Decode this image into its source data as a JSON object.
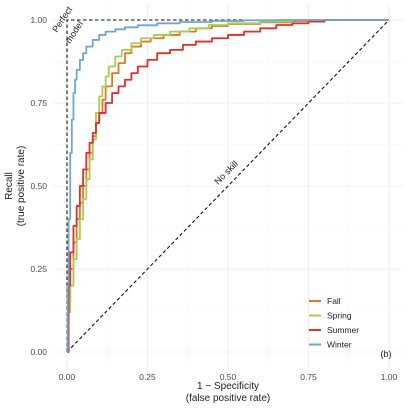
{
  "chart_data": {
    "type": "line",
    "xlabel": [
      "1 − Specificity",
      "(false positive rate)"
    ],
    "ylabel": [
      "Recall",
      "(true positive rate)"
    ],
    "xlim": [
      0,
      1
    ],
    "ylim": [
      0,
      1
    ],
    "xticks": [
      "0.00",
      "0.25",
      "0.50",
      "0.75",
      "1.00"
    ],
    "yticks": [
      "0.00",
      "0.25",
      "0.50",
      "0.75",
      "1.00"
    ],
    "grid": true,
    "legend_position": "bottom-right",
    "panel_label": "(b)",
    "annotations": {
      "perfect_model": [
        "Perfect",
        "model"
      ],
      "no_skill": "No skill"
    },
    "reference_lines": {
      "perfect": {
        "x": [
          0,
          0,
          1
        ],
        "y": [
          0,
          1,
          1
        ]
      },
      "no_skill": {
        "x": [
          0,
          1
        ],
        "y": [
          0,
          1
        ]
      }
    },
    "series": [
      {
        "name": "Fall",
        "color": "#e8761c",
        "x": [
          0,
          0.005,
          0.01,
          0.02,
          0.03,
          0.04,
          0.05,
          0.06,
          0.07,
          0.08,
          0.09,
          0.1,
          0.11,
          0.12,
          0.14,
          0.16,
          0.18,
          0.2,
          0.23,
          0.26,
          0.3,
          0.35,
          0.4,
          0.45,
          0.5,
          0.6,
          0.7,
          0.8,
          0.9,
          1
        ],
        "y": [
          0,
          0.15,
          0.25,
          0.33,
          0.4,
          0.45,
          0.5,
          0.55,
          0.6,
          0.65,
          0.69,
          0.72,
          0.76,
          0.8,
          0.84,
          0.87,
          0.9,
          0.92,
          0.935,
          0.945,
          0.955,
          0.965,
          0.975,
          0.982,
          0.988,
          0.993,
          0.997,
          1,
          1,
          1
        ]
      },
      {
        "name": "Spring",
        "color": "#a8cc56",
        "x": [
          0,
          0.005,
          0.01,
          0.02,
          0.03,
          0.04,
          0.05,
          0.06,
          0.07,
          0.08,
          0.09,
          0.1,
          0.11,
          0.12,
          0.13,
          0.15,
          0.17,
          0.2,
          0.23,
          0.27,
          0.32,
          0.38,
          0.44,
          0.5,
          0.6,
          0.7,
          0.8,
          0.9,
          1
        ],
        "y": [
          0,
          0.12,
          0.2,
          0.28,
          0.34,
          0.4,
          0.46,
          0.52,
          0.58,
          0.64,
          0.72,
          0.77,
          0.8,
          0.83,
          0.86,
          0.89,
          0.91,
          0.93,
          0.945,
          0.955,
          0.965,
          0.975,
          0.985,
          0.99,
          0.995,
          1,
          1,
          1,
          1
        ]
      },
      {
        "name": "Summer",
        "color": "#e0302a",
        "x": [
          0,
          0.005,
          0.01,
          0.02,
          0.03,
          0.04,
          0.05,
          0.06,
          0.07,
          0.08,
          0.09,
          0.1,
          0.12,
          0.14,
          0.16,
          0.18,
          0.2,
          0.22,
          0.25,
          0.28,
          0.32,
          0.36,
          0.4,
          0.45,
          0.5,
          0.55,
          0.6,
          0.65,
          0.7,
          0.75,
          0.8,
          0.9,
          1
        ],
        "y": [
          0,
          0.2,
          0.3,
          0.38,
          0.44,
          0.5,
          0.55,
          0.6,
          0.63,
          0.66,
          0.69,
          0.72,
          0.75,
          0.78,
          0.8,
          0.82,
          0.84,
          0.86,
          0.88,
          0.9,
          0.91,
          0.925,
          0.935,
          0.945,
          0.955,
          0.965,
          0.975,
          0.985,
          0.99,
          0.995,
          1,
          1,
          1
        ]
      },
      {
        "name": "Winter",
        "color": "#6fa8cf",
        "x": [
          0,
          0.002,
          0.005,
          0.01,
          0.015,
          0.02,
          0.025,
          0.03,
          0.04,
          0.05,
          0.06,
          0.08,
          0.1,
          0.12,
          0.15,
          0.18,
          0.22,
          0.28,
          0.35,
          0.45,
          0.55,
          0.65,
          0.75,
          0.85,
          1
        ],
        "y": [
          0,
          0.2,
          0.4,
          0.6,
          0.7,
          0.78,
          0.82,
          0.85,
          0.88,
          0.9,
          0.92,
          0.94,
          0.955,
          0.965,
          0.972,
          0.978,
          0.984,
          0.99,
          0.994,
          0.997,
          0.999,
          1,
          1,
          1,
          1
        ]
      }
    ]
  }
}
